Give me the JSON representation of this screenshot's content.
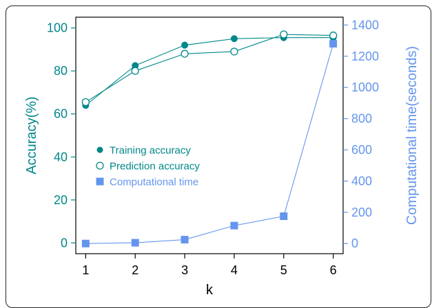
{
  "chart_data": {
    "type": "line",
    "x": [
      1,
      2,
      3,
      4,
      5,
      6
    ],
    "xlabel": "k",
    "xlim": [
      0.8,
      6.2
    ],
    "ylabel_left": "Accuracy(%)",
    "ylim_left": [
      -5,
      105
    ],
    "yticks_left": [
      0,
      20,
      40,
      60,
      80,
      100
    ],
    "ylabel_right": "Computational time(seconds)",
    "ylim_right": [
      -65,
      1450
    ],
    "yticks_right": [
      0,
      200,
      400,
      600,
      800,
      1000,
      1200,
      1400
    ],
    "legend_position": "center-left",
    "grid": false,
    "series": [
      {
        "name": "Training accuracy",
        "axis": "left",
        "marker": "filled-circle",
        "color": "#00878a",
        "values": [
          64,
          82.5,
          92,
          95,
          95.5,
          95.5
        ]
      },
      {
        "name": "Prediction accuracy",
        "axis": "left",
        "marker": "open-circle",
        "color": "#00878a",
        "values": [
          65.5,
          80,
          88,
          89,
          97,
          96.5
        ]
      },
      {
        "name": "Computational time",
        "axis": "right",
        "marker": "filled-square",
        "color": "#6495ed",
        "values": [
          0,
          5,
          25,
          115,
          175,
          1280
        ]
      }
    ]
  }
}
